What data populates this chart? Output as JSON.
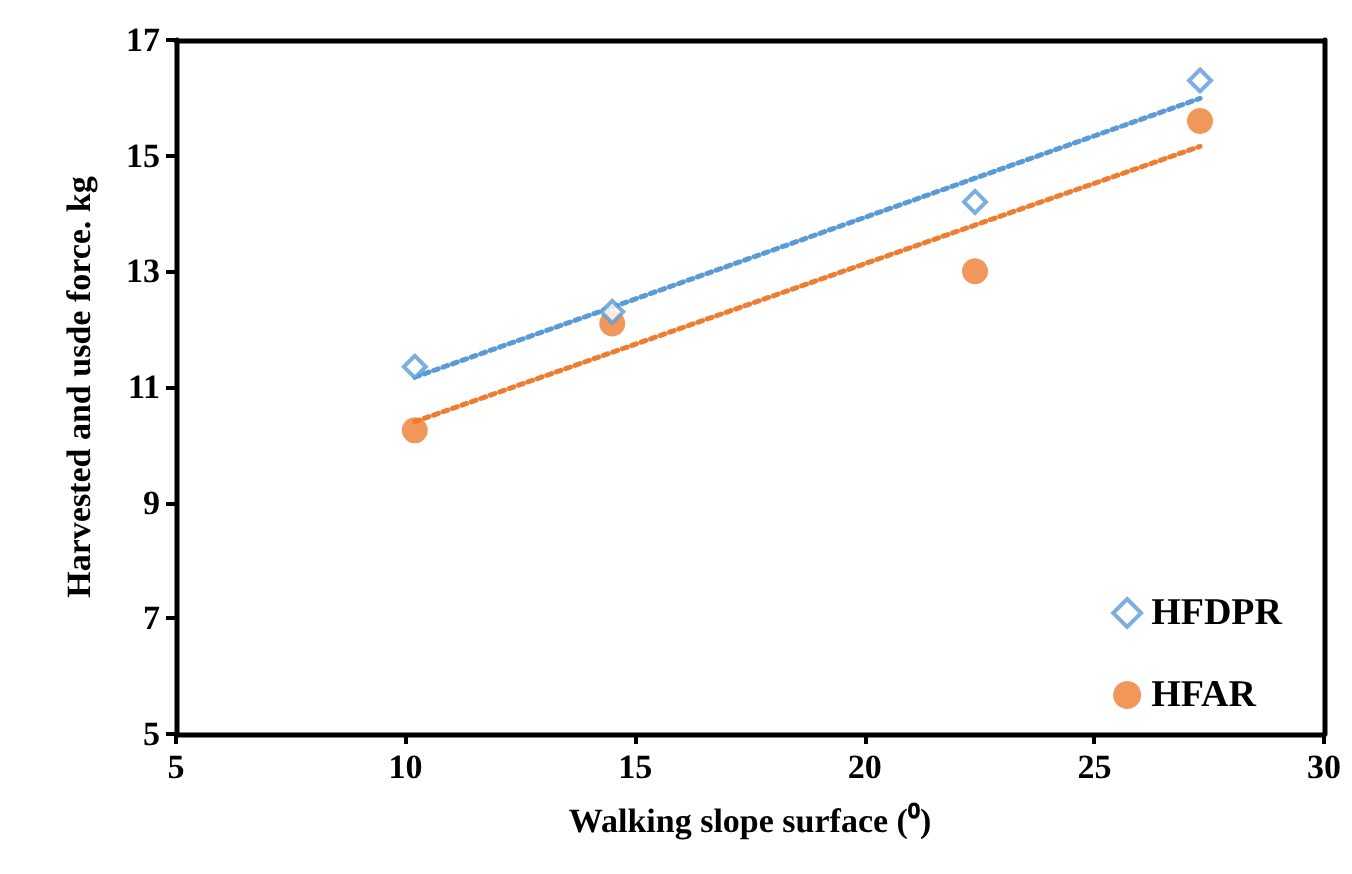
{
  "chart_data": {
    "type": "scatter",
    "xlabel": "Walking slope surface (⁰)",
    "ylabel": "Harvested and usde force. kg",
    "x": [
      10.2,
      14.5,
      22.4,
      27.3
    ],
    "series": [
      {
        "name": "HFDPR",
        "color": "#5b9bd5",
        "marker": "diamond",
        "values": [
          11.35,
          12.3,
          14.2,
          16.3
        ]
      },
      {
        "name": "HFAR",
        "color": "#ed7d31",
        "marker": "circle",
        "values": [
          10.25,
          12.1,
          13.0,
          15.6
        ]
      },
      {
        "type": "line",
        "color": "#5b9bd5",
        "marker": "none",
        "line_style": "dotted",
        "values": [
          11.17,
          12.38,
          14.61,
          15.99
        ]
      },
      {
        "type": "line",
        "color": "#ed7d31",
        "marker": "none",
        "line_style": "dotted",
        "values": [
          10.4,
          11.6,
          13.8,
          15.16
        ]
      }
    ],
    "xlim": [
      5,
      30
    ],
    "xticks": [
      5,
      10,
      15,
      20,
      25,
      30
    ],
    "ylim": [
      5,
      17
    ],
    "yticks": [
      5,
      7,
      9,
      11,
      13,
      15,
      17
    ],
    "grid": false,
    "legend": "bottom right"
  }
}
